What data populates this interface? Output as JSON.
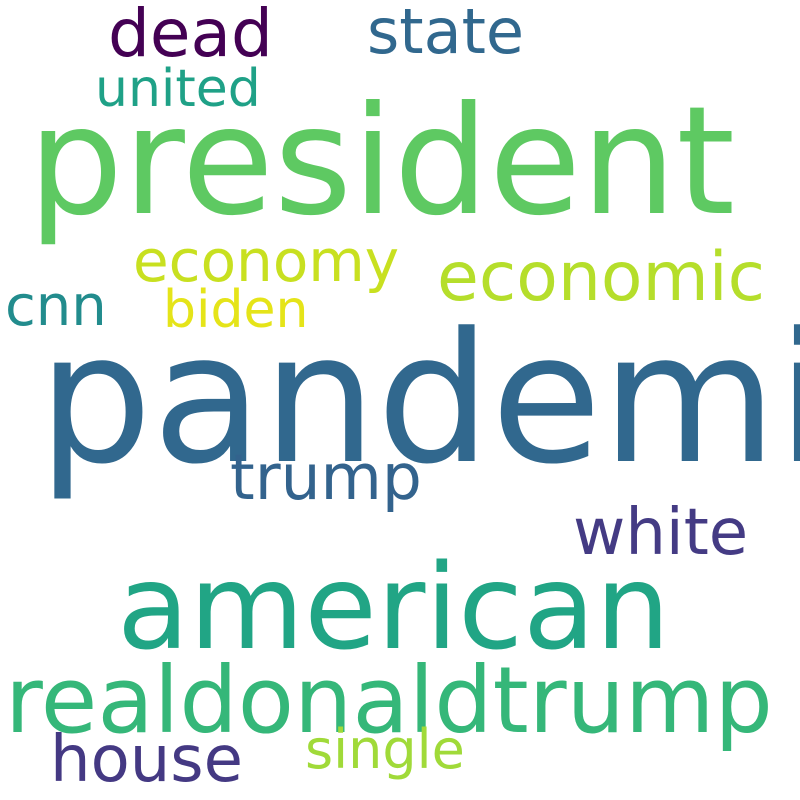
{
  "words": {
    "president": {
      "text": "president",
      "color": "#5ec962"
    },
    "pandemic": {
      "text": "pandemic",
      "color": "#31688e"
    },
    "american": {
      "text": "american",
      "color": "#21a585"
    },
    "realdonaldtrump": {
      "text": "realdonaldtrump",
      "color": "#35b779"
    },
    "economic": {
      "text": "economic",
      "color": "#b5de2b"
    },
    "economy": {
      "text": "economy",
      "color": "#c8e020"
    },
    "white": {
      "text": "white",
      "color": "#443b84"
    },
    "house": {
      "text": "house",
      "color": "#443983"
    },
    "trump": {
      "text": "trump",
      "color": "#33638d"
    },
    "state": {
      "text": "state",
      "color": "#31688e"
    },
    "dead": {
      "text": "dead",
      "color": "#440154"
    },
    "single": {
      "text": "single",
      "color": "#a0da39"
    },
    "cnn": {
      "text": "cnn",
      "color": "#228c8d"
    },
    "biden": {
      "text": "biden",
      "color": "#e5e419"
    },
    "united": {
      "text": "united",
      "color": "#1fa187"
    }
  }
}
